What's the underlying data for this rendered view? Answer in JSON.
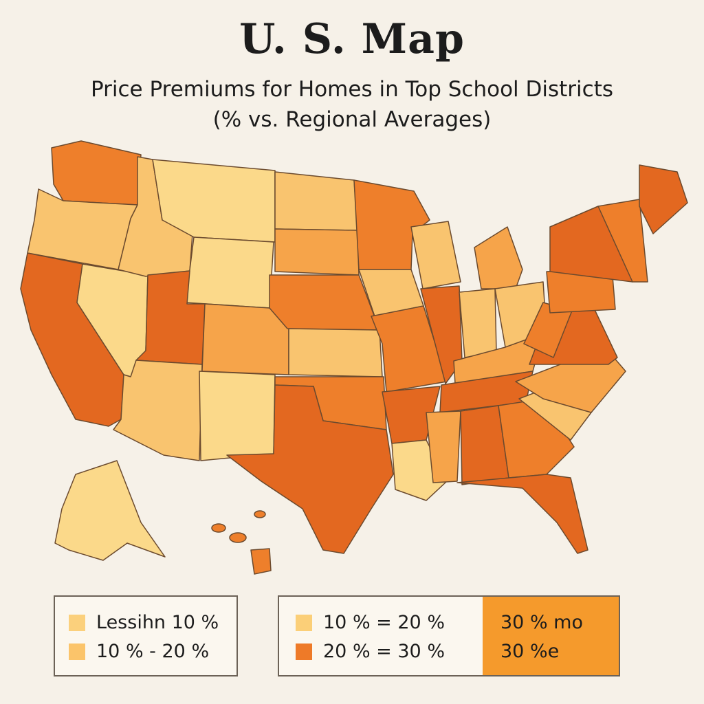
{
  "title": "U. S.  Map",
  "subtitle_line1": "Price Premiums for Homes in Top School Districts",
  "subtitle_line2": "(% vs. Regional Averages)",
  "colors": {
    "lightest": "#fbd98a",
    "light": "#f9c46f",
    "medium": "#f6a44a",
    "dark": "#ee7f2b",
    "darkest": "#e36820",
    "outline": "#6b4a2e"
  },
  "legend": {
    "box_a": [
      {
        "label": "Lessihn 10 %",
        "color": "#fbd07c"
      },
      {
        "label": "10 % - 20 %",
        "color": "#fbc46a"
      }
    ],
    "box_b": [
      {
        "label": "10 %  =  20 %",
        "color": "#fbcf78"
      },
      {
        "label": "20 %  =  30 %",
        "color": "#ee7a28"
      }
    ],
    "box_high": [
      "30 % mo",
      "30 %e"
    ]
  },
  "states": [
    {
      "id": "WA",
      "tier": "dark"
    },
    {
      "id": "OR",
      "tier": "light"
    },
    {
      "id": "CA",
      "tier": "darkest"
    },
    {
      "id": "NV",
      "tier": "lightest"
    },
    {
      "id": "ID",
      "tier": "light"
    },
    {
      "id": "MT",
      "tier": "lightest"
    },
    {
      "id": "WY",
      "tier": "lightest"
    },
    {
      "id": "UT",
      "tier": "darkest"
    },
    {
      "id": "AZ",
      "tier": "light"
    },
    {
      "id": "CO",
      "tier": "medium"
    },
    {
      "id": "NM",
      "tier": "lightest"
    },
    {
      "id": "ND",
      "tier": "light"
    },
    {
      "id": "SD",
      "tier": "medium"
    },
    {
      "id": "NE",
      "tier": "dark"
    },
    {
      "id": "KS",
      "tier": "light"
    },
    {
      "id": "OK",
      "tier": "dark"
    },
    {
      "id": "TX",
      "tier": "darkest"
    },
    {
      "id": "MN",
      "tier": "dark"
    },
    {
      "id": "IA",
      "tier": "light"
    },
    {
      "id": "MO",
      "tier": "dark"
    },
    {
      "id": "AR",
      "tier": "darkest"
    },
    {
      "id": "LA",
      "tier": "lightest"
    },
    {
      "id": "WI",
      "tier": "light"
    },
    {
      "id": "IL",
      "tier": "darkest"
    },
    {
      "id": "MI",
      "tier": "medium"
    },
    {
      "id": "IN",
      "tier": "light"
    },
    {
      "id": "OH",
      "tier": "light"
    },
    {
      "id": "KY",
      "tier": "medium"
    },
    {
      "id": "TN",
      "tier": "darkest"
    },
    {
      "id": "MS",
      "tier": "medium"
    },
    {
      "id": "AL",
      "tier": "darkest"
    },
    {
      "id": "GA",
      "tier": "dark"
    },
    {
      "id": "FL",
      "tier": "darkest"
    },
    {
      "id": "SC",
      "tier": "light"
    },
    {
      "id": "NC",
      "tier": "medium"
    },
    {
      "id": "VA",
      "tier": "darkest"
    },
    {
      "id": "WV",
      "tier": "dark"
    },
    {
      "id": "PA",
      "tier": "dark"
    },
    {
      "id": "NY",
      "tier": "darkest"
    },
    {
      "id": "NE-states",
      "tier": "dark"
    },
    {
      "id": "ME",
      "tier": "darkest"
    },
    {
      "id": "AK",
      "tier": "lightest"
    },
    {
      "id": "HI",
      "tier": "dark"
    }
  ]
}
